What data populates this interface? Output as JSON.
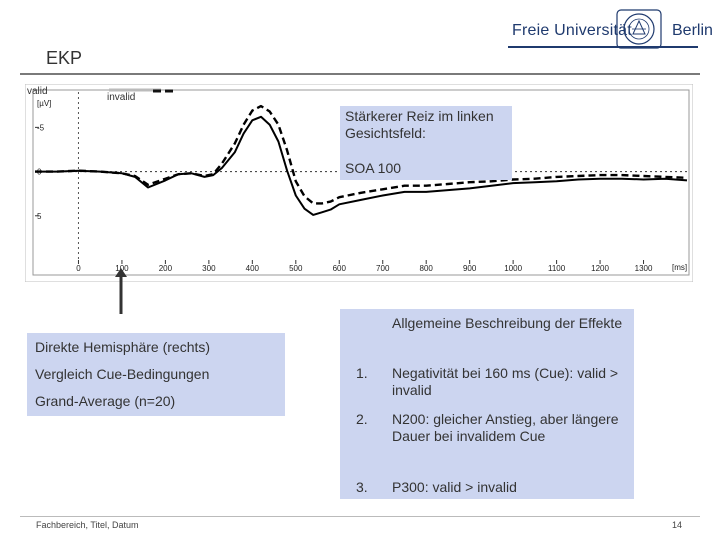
{
  "header": {
    "logo_left": "Freie Universität",
    "logo_right": "Berlin",
    "slide_title": "EKP"
  },
  "chart_data": {
    "type": "line",
    "title": "",
    "xlabel": "[ms]",
    "ylabel": "[µV]",
    "xlim": [
      -100,
      1400
    ],
    "ylim": [
      -9,
      10
    ],
    "x_ticks": [
      0,
      100,
      200,
      300,
      400,
      500,
      600,
      700,
      800,
      900,
      1000,
      1100,
      1200,
      1300
    ],
    "y_ticks": [
      -5,
      0,
      5
    ],
    "y_tick_labels": [
      "-5",
      "0",
      "5"
    ],
    "legend": {
      "position": "top-left",
      "entries": [
        "valid",
        "invalid"
      ]
    },
    "series": [
      {
        "name": "valid",
        "style": "solid",
        "x": [
          -100,
          -50,
          0,
          50,
          100,
          130,
          160,
          200,
          230,
          260,
          290,
          310,
          330,
          360,
          380,
          400,
          420,
          440,
          460,
          480,
          500,
          520,
          540,
          560,
          580,
          600,
          650,
          700,
          750,
          800,
          850,
          900,
          950,
          1000,
          1050,
          1100,
          1150,
          1200,
          1250,
          1300,
          1350,
          1400
        ],
        "values": [
          0,
          0,
          -0.1,
          0,
          0.2,
          0.6,
          1.8,
          1.0,
          0.3,
          0.2,
          0.6,
          0.4,
          -0.4,
          -2.2,
          -4.3,
          -5.8,
          -6.2,
          -5.3,
          -3.4,
          -0.1,
          2.7,
          4.2,
          4.9,
          4.6,
          4.3,
          3.7,
          3.2,
          2.7,
          2.3,
          2.3,
          2.1,
          1.9,
          1.6,
          1.3,
          1.2,
          1.1,
          0.9,
          0.8,
          0.8,
          0.9,
          0.8,
          1.0
        ]
      },
      {
        "name": "invalid",
        "style": "dashed",
        "x": [
          -100,
          -50,
          0,
          50,
          100,
          130,
          160,
          200,
          230,
          260,
          290,
          310,
          330,
          360,
          380,
          400,
          420,
          440,
          460,
          480,
          500,
          520,
          540,
          560,
          580,
          600,
          650,
          700,
          750,
          800,
          850,
          900,
          950,
          1000,
          1050,
          1100,
          1150,
          1200,
          1250,
          1300,
          1350,
          1400
        ],
        "values": [
          0,
          0,
          -0.1,
          0,
          0.2,
          0.5,
          1.5,
          0.8,
          0.3,
          0.2,
          0.5,
          0.3,
          -0.9,
          -3.2,
          -5.3,
          -6.9,
          -7.4,
          -6.8,
          -5.3,
          -2.4,
          1.1,
          2.8,
          3.6,
          3.6,
          3.4,
          2.9,
          2.4,
          2.0,
          1.6,
          1.6,
          1.4,
          1.2,
          1.1,
          0.9,
          0.8,
          0.6,
          0.5,
          0.4,
          0.4,
          0.5,
          0.6,
          0.7
        ]
      }
    ]
  },
  "callout_top": {
    "line1": "Stärkerer Reiz im linken Gesichtsfeld:",
    "line2": "SOA 100"
  },
  "left_box": {
    "items": [
      "Direkte Hemisphäre (rechts)",
      "Vergleich Cue-Bedingungen",
      "Grand-Average (n=20)"
    ]
  },
  "right_box": {
    "heading": "Allgemeine Beschreibung der Effekte",
    "items": [
      {
        "num": "1.",
        "text": "Negativität bei 160 ms (Cue): valid > invalid"
      },
      {
        "num": "2.",
        "text": "N200: gleicher Anstieg, aber längere Dauer bei invalidem Cue"
      },
      {
        "num": "3.",
        "text": "P300: valid > invalid"
      }
    ]
  },
  "footer": {
    "left": "Fachbereich, Titel, Datum",
    "page": "14"
  },
  "colors": {
    "brand_blue": "#1f3a6e",
    "box_fill": "#ccd5f0",
    "rule_gray": "#7a7a7a"
  }
}
